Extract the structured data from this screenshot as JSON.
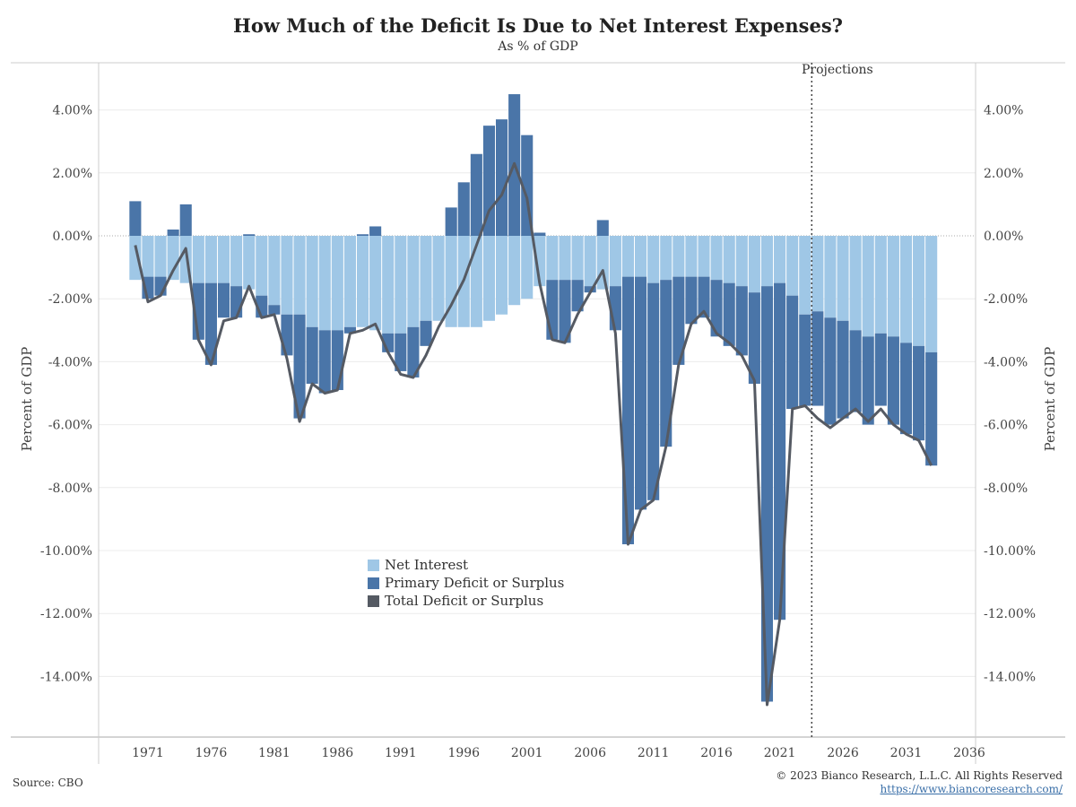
{
  "title": "How Much of the Deficit Is Due to Net Interest Expenses?",
  "subtitle": "As % of GDP",
  "projections_label": "Projections",
  "source": "Source: CBO",
  "copyright": "© 2023 Bianco Research, L.L.C. All Rights Reserved",
  "url": "https://www.biancoresearch.com/",
  "legend": [
    {
      "label": "Net Interest",
      "color": "#9fc7e6"
    },
    {
      "label": "Primary Deficit or Surplus",
      "color": "#4a75a8"
    },
    {
      "label": "Total Deficit or Surplus",
      "color": "#555a63"
    }
  ],
  "chart_data": {
    "type": "bar",
    "xlabel": "",
    "ylabel": "Percent of GDP",
    "ylim": [
      -16,
      5
    ],
    "y_ticks": [
      4,
      2,
      0,
      -2,
      -4,
      -6,
      -8,
      -10,
      -12,
      -14
    ],
    "y_tick_labels": [
      "4.00%",
      "2.00%",
      "0.00%",
      "-2.00%",
      "-4.00%",
      "-6.00%",
      "-8.00%",
      "-10.00%",
      "-12.00%",
      "-14.00%"
    ],
    "x_ticks": [
      1971,
      1976,
      1981,
      1986,
      1991,
      1996,
      2001,
      2006,
      2011,
      2016,
      2021,
      2026,
      2031,
      2036
    ],
    "x_range": [
      1967.1,
      2036.5
    ],
    "projection_start_year": 2023,
    "grid": true,
    "legend_position": "lower-center",
    "years": [
      1970,
      1971,
      1972,
      1973,
      1974,
      1975,
      1976,
      1977,
      1978,
      1979,
      1980,
      1981,
      1982,
      1983,
      1984,
      1985,
      1986,
      1987,
      1988,
      1989,
      1990,
      1991,
      1992,
      1993,
      1994,
      1995,
      1996,
      1997,
      1998,
      1999,
      2000,
      2001,
      2002,
      2003,
      2004,
      2005,
      2006,
      2007,
      2008,
      2009,
      2010,
      2011,
      2012,
      2013,
      2014,
      2015,
      2016,
      2017,
      2018,
      2019,
      2020,
      2021,
      2022,
      2023,
      2024,
      2025,
      2026,
      2027,
      2028,
      2029,
      2030,
      2031,
      2032,
      2033
    ],
    "series": [
      {
        "name": "Net Interest",
        "values": [
          -1.4,
          -1.3,
          -1.3,
          -1.4,
          -1.5,
          -1.5,
          -1.5,
          -1.5,
          -1.6,
          -1.7,
          -1.9,
          -2.2,
          -2.5,
          -2.5,
          -2.9,
          -3.0,
          -3.0,
          -2.9,
          -2.9,
          -3.0,
          -3.1,
          -3.1,
          -2.9,
          -2.7,
          -2.7,
          -2.9,
          -2.9,
          -2.9,
          -2.7,
          -2.5,
          -2.2,
          -2.0,
          -1.6,
          -1.4,
          -1.4,
          -1.4,
          -1.6,
          -1.7,
          -1.6,
          -1.3,
          -1.3,
          -1.5,
          -1.4,
          -1.3,
          -1.3,
          -1.3,
          -1.4,
          -1.5,
          -1.6,
          -1.8,
          -1.6,
          -1.5,
          -1.9,
          -2.5,
          -2.4,
          -2.6,
          -2.7,
          -3.0,
          -3.2,
          -3.1,
          -3.2,
          -3.4,
          -3.5,
          -3.7
        ]
      },
      {
        "name": "Primary Deficit or Surplus",
        "values": [
          1.1,
          -0.7,
          -0.6,
          0.2,
          1.0,
          -1.8,
          -2.6,
          -1.1,
          -1.0,
          0.05,
          -0.7,
          -0.3,
          -1.3,
          -3.3,
          -1.8,
          -2.0,
          -1.9,
          -0.2,
          0.05,
          0.3,
          -0.6,
          -1.2,
          -1.6,
          -0.8,
          0.0,
          0.9,
          1.7,
          2.6,
          3.5,
          3.7,
          4.5,
          3.2,
          0.1,
          -1.9,
          -2.0,
          -1.0,
          -0.2,
          0.5,
          -1.4,
          -8.5,
          -7.4,
          -6.9,
          -5.3,
          -2.8,
          -1.5,
          -1.3,
          -1.8,
          -2.0,
          -2.2,
          -2.9,
          -13.2,
          -10.7,
          -3.6,
          -2.9,
          -3.0,
          -3.4,
          -3.1,
          -2.6,
          -2.8,
          -2.3,
          -2.8,
          -2.9,
          -3.0,
          -3.6
        ]
      },
      {
        "name": "Total Deficit or Surplus",
        "values": [
          -0.3,
          -2.1,
          -1.9,
          -1.1,
          -0.4,
          -3.3,
          -4.1,
          -2.7,
          -2.6,
          -1.6,
          -2.6,
          -2.5,
          -3.9,
          -5.9,
          -4.7,
          -5.0,
          -4.9,
          -3.1,
          -3.0,
          -2.8,
          -3.7,
          -4.4,
          -4.5,
          -3.8,
          -2.9,
          -2.2,
          -1.4,
          -0.3,
          0.8,
          1.3,
          2.3,
          1.2,
          -1.5,
          -3.3,
          -3.4,
          -2.5,
          -1.8,
          -1.1,
          -3.1,
          -9.8,
          -8.7,
          -8.4,
          -6.7,
          -4.1,
          -2.8,
          -2.4,
          -3.1,
          -3.4,
          -3.8,
          -4.6,
          -14.9,
          -12.2,
          -5.5,
          -5.4,
          -5.8,
          -6.1,
          -5.8,
          -5.5,
          -5.9,
          -5.5,
          -6.0,
          -6.3,
          -6.5,
          -7.3
        ]
      }
    ]
  }
}
